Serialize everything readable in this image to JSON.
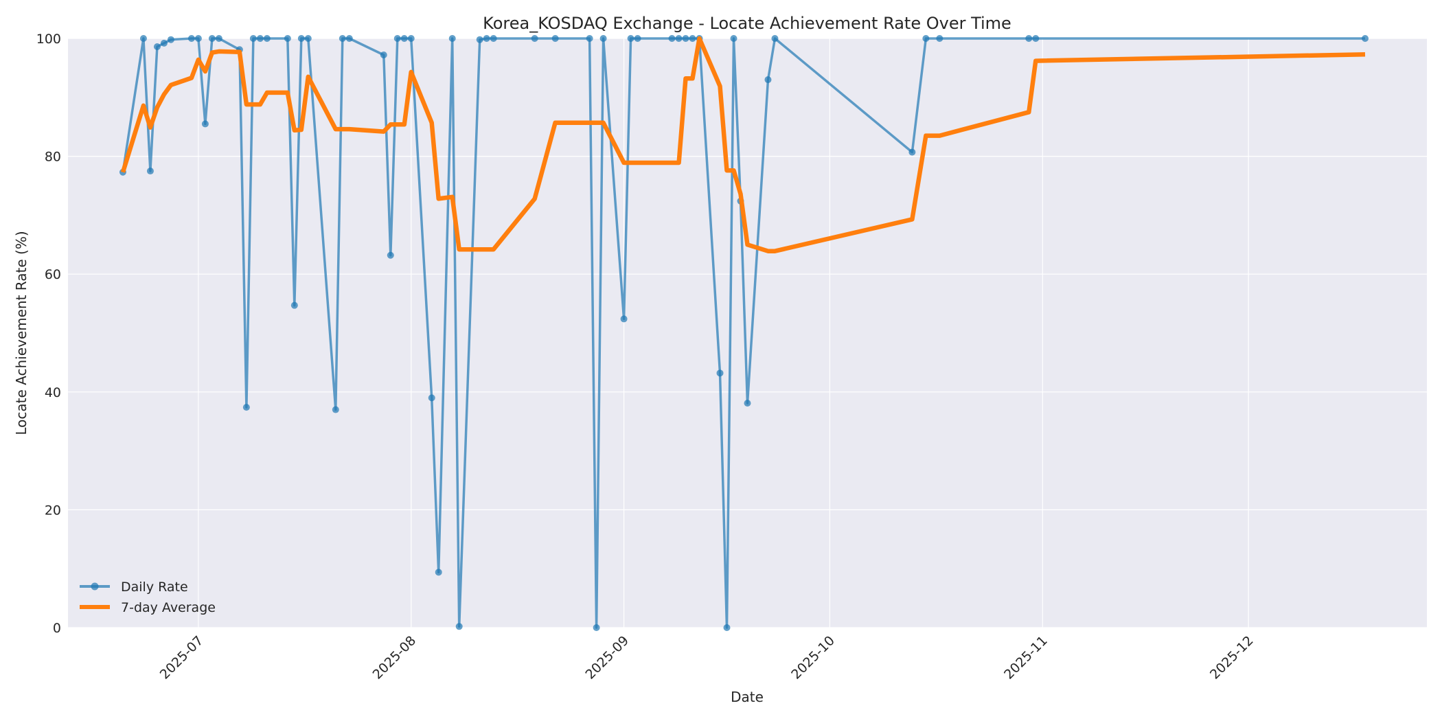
{
  "chart_data": {
    "type": "line",
    "title": "Korea_KOSDAQ Exchange - Locate Achievement Rate Over Time",
    "xlabel": "Date",
    "ylabel": "Locate Achievement Rate (%)",
    "ylim": [
      0,
      100
    ],
    "xlim": [
      "2025-06-12",
      "2025-12-27"
    ],
    "grid": true,
    "legend_position": "lower left",
    "y_ticks": [
      0,
      20,
      40,
      60,
      80,
      100
    ],
    "x_ticks": [
      "2025-07",
      "2025-08",
      "2025-09",
      "2025-10",
      "2025-11",
      "2025-12"
    ],
    "series": [
      {
        "name": "Daily Rate",
        "color": "#1f77b4",
        "style": "line-with-markers",
        "points": [
          [
            "2025-06-20",
            77.3
          ],
          [
            "2025-06-23",
            100
          ],
          [
            "2025-06-24",
            77.5
          ],
          [
            "2025-06-25",
            98.6
          ],
          [
            "2025-06-26",
            99.2
          ],
          [
            "2025-06-27",
            99.8
          ],
          [
            "2025-06-30",
            100
          ],
          [
            "2025-07-01",
            100
          ],
          [
            "2025-07-02",
            85.5
          ],
          [
            "2025-07-03",
            100
          ],
          [
            "2025-07-04",
            100
          ],
          [
            "2025-07-07",
            98.1
          ],
          [
            "2025-07-08",
            37.4
          ],
          [
            "2025-07-09",
            100
          ],
          [
            "2025-07-10",
            100
          ],
          [
            "2025-07-11",
            100
          ],
          [
            "2025-07-14",
            100
          ],
          [
            "2025-07-15",
            54.7
          ],
          [
            "2025-07-16",
            100
          ],
          [
            "2025-07-17",
            100
          ],
          [
            "2025-07-21",
            37.0
          ],
          [
            "2025-07-22",
            100
          ],
          [
            "2025-07-23",
            100
          ],
          [
            "2025-07-28",
            97.2
          ],
          [
            "2025-07-29",
            63.2
          ],
          [
            "2025-07-30",
            100
          ],
          [
            "2025-07-31",
            100
          ],
          [
            "2025-08-01",
            100
          ],
          [
            "2025-08-04",
            39.0
          ],
          [
            "2025-08-05",
            9.4
          ],
          [
            "2025-08-07",
            100
          ],
          [
            "2025-08-08",
            0.2
          ],
          [
            "2025-08-11",
            99.8
          ],
          [
            "2025-08-12",
            100
          ],
          [
            "2025-08-13",
            100
          ],
          [
            "2025-08-19",
            100
          ],
          [
            "2025-08-22",
            100
          ],
          [
            "2025-08-27",
            100
          ],
          [
            "2025-08-28",
            0
          ],
          [
            "2025-08-29",
            100
          ],
          [
            "2025-09-01",
            52.4
          ],
          [
            "2025-09-02",
            100
          ],
          [
            "2025-09-03",
            100
          ],
          [
            "2025-09-08",
            100
          ],
          [
            "2025-09-09",
            100
          ],
          [
            "2025-09-10",
            100
          ],
          [
            "2025-09-11",
            100
          ],
          [
            "2025-09-12",
            100
          ],
          [
            "2025-09-15",
            43.2
          ],
          [
            "2025-09-16",
            0
          ],
          [
            "2025-09-17",
            100
          ],
          [
            "2025-09-18",
            72.4
          ],
          [
            "2025-09-19",
            38.1
          ],
          [
            "2025-09-22",
            93.0
          ],
          [
            "2025-09-23",
            100
          ],
          [
            "2025-10-13",
            80.7
          ],
          [
            "2025-10-15",
            100
          ],
          [
            "2025-10-17",
            100
          ],
          [
            "2025-10-30",
            100
          ],
          [
            "2025-10-31",
            100
          ],
          [
            "2025-12-18",
            100
          ]
        ]
      },
      {
        "name": "7-day Average",
        "color": "#ff7f0e",
        "style": "thick-line",
        "points": [
          [
            "2025-06-20",
            77.3
          ],
          [
            "2025-06-23",
            88.6
          ],
          [
            "2025-06-24",
            84.9
          ],
          [
            "2025-06-25",
            88.3
          ],
          [
            "2025-06-26",
            90.5
          ],
          [
            "2025-06-27",
            92.1
          ],
          [
            "2025-06-30",
            93.3
          ],
          [
            "2025-07-01",
            96.4
          ],
          [
            "2025-07-02",
            94.4
          ],
          [
            "2025-07-03",
            97.6
          ],
          [
            "2025-07-04",
            97.8
          ],
          [
            "2025-07-07",
            97.7
          ],
          [
            "2025-07-08",
            88.8
          ],
          [
            "2025-07-09",
            88.8
          ],
          [
            "2025-07-10",
            88.8
          ],
          [
            "2025-07-11",
            90.8
          ],
          [
            "2025-07-14",
            90.8
          ],
          [
            "2025-07-15",
            84.4
          ],
          [
            "2025-07-16",
            84.5
          ],
          [
            "2025-07-17",
            93.5
          ],
          [
            "2025-07-21",
            84.6
          ],
          [
            "2025-07-22",
            84.6
          ],
          [
            "2025-07-23",
            84.6
          ],
          [
            "2025-07-28",
            84.2
          ],
          [
            "2025-07-29",
            85.4
          ],
          [
            "2025-07-30",
            85.4
          ],
          [
            "2025-07-31",
            85.4
          ],
          [
            "2025-08-01",
            94.3
          ],
          [
            "2025-08-04",
            85.7
          ],
          [
            "2025-08-05",
            72.8
          ],
          [
            "2025-08-07",
            73.1
          ],
          [
            "2025-08-08",
            64.2
          ],
          [
            "2025-08-11",
            64.2
          ],
          [
            "2025-08-12",
            64.2
          ],
          [
            "2025-08-13",
            64.2
          ],
          [
            "2025-08-19",
            72.8
          ],
          [
            "2025-08-22",
            85.7
          ],
          [
            "2025-08-27",
            85.7
          ],
          [
            "2025-08-28",
            85.7
          ],
          [
            "2025-08-29",
            85.7
          ],
          [
            "2025-09-01",
            78.9
          ],
          [
            "2025-09-02",
            78.9
          ],
          [
            "2025-09-03",
            78.9
          ],
          [
            "2025-09-08",
            78.9
          ],
          [
            "2025-09-09",
            78.9
          ],
          [
            "2025-09-10",
            93.2
          ],
          [
            "2025-09-11",
            93.2
          ],
          [
            "2025-09-12",
            100
          ],
          [
            "2025-09-15",
            91.9
          ],
          [
            "2025-09-16",
            77.6
          ],
          [
            "2025-09-17",
            77.6
          ],
          [
            "2025-09-18",
            73.6
          ],
          [
            "2025-09-19",
            65.0
          ],
          [
            "2025-09-22",
            63.9
          ],
          [
            "2025-09-23",
            63.9
          ],
          [
            "2025-10-13",
            69.3
          ],
          [
            "2025-10-15",
            83.5
          ],
          [
            "2025-10-17",
            83.5
          ],
          [
            "2025-10-30",
            87.5
          ],
          [
            "2025-10-31",
            96.2
          ],
          [
            "2025-12-18",
            97.3
          ]
        ]
      }
    ]
  },
  "chart": {
    "title": "Korea_KOSDAQ Exchange - Locate Achievement Rate Over Time",
    "xlabel": "Date",
    "ylabel": "Locate Achievement Rate (%)",
    "legend": {
      "daily": "Daily Rate",
      "avg": "7-day Average"
    }
  }
}
